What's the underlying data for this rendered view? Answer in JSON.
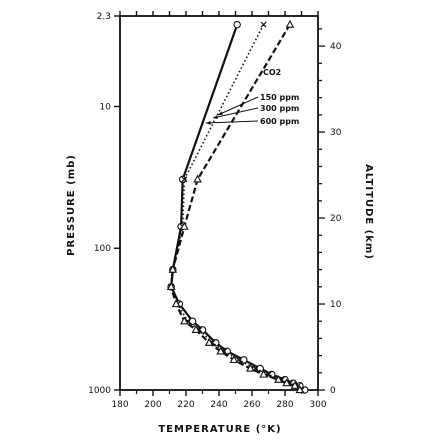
{
  "chart_data": {
    "type": "line",
    "title": "",
    "xlabel": "TEMPERATURE (°K)",
    "ylabel_left": "PRESSURE (mb)",
    "ylabel_right": "ALTITUDE (km)",
    "x_ticks": [
      "180",
      "200",
      "220",
      "240",
      "260",
      "280",
      "300"
    ],
    "xlim": [
      180,
      300
    ],
    "left_axis": {
      "scale": "log",
      "ticks": [
        "2.3",
        "10",
        "100",
        "1000"
      ],
      "ylim": [
        1000,
        2.3
      ]
    },
    "right_axis": {
      "ticks": [
        "0",
        "10",
        "20",
        "30",
        "40"
      ],
      "ylim": [
        0,
        43.5
      ]
    },
    "legend": {
      "title": "CO2",
      "position": "upper-right",
      "entries": [
        "150 ppm",
        "300 ppm",
        "600 ppm"
      ]
    },
    "series": [
      {
        "name": "150 ppm",
        "marker": "circle",
        "line": "solid",
        "points": [
          [
            251,
            42.5
          ],
          [
            218,
            24.5
          ],
          [
            217,
            19
          ],
          [
            212,
            14
          ],
          [
            211,
            12
          ],
          [
            216,
            10
          ],
          [
            224,
            8
          ],
          [
            230,
            7
          ],
          [
            238,
            5.5
          ],
          [
            245,
            4.5
          ],
          [
            255,
            3.5
          ],
          [
            265,
            2.5
          ],
          [
            272,
            1.8
          ],
          [
            280,
            1.2
          ],
          [
            285,
            0.8
          ],
          [
            289,
            0.5
          ],
          [
            292,
            0
          ]
        ]
      },
      {
        "name": "300 ppm",
        "marker": "cross",
        "line": "dotted",
        "points": [
          [
            267,
            42.5
          ],
          [
            219,
            24.5
          ],
          [
            218,
            19
          ],
          [
            212,
            14
          ],
          [
            211,
            12
          ],
          [
            215,
            10
          ],
          [
            221,
            8
          ],
          [
            228,
            7
          ],
          [
            236,
            5.5
          ],
          [
            243,
            4.5
          ],
          [
            252,
            3.5
          ],
          [
            262,
            2.5
          ],
          [
            270,
            1.8
          ],
          [
            278,
            1.2
          ],
          [
            283,
            0.8
          ],
          [
            288,
            0.5
          ],
          [
            290,
            0
          ]
        ]
      },
      {
        "name": "600 ppm",
        "marker": "triangle",
        "line": "dashed",
        "points": [
          [
            283,
            42.5
          ],
          [
            227,
            24.5
          ],
          [
            219,
            19
          ],
          [
            212,
            14
          ],
          [
            211,
            12
          ],
          [
            214,
            10
          ],
          [
            219,
            8
          ],
          [
            226,
            7
          ],
          [
            234,
            5.5
          ],
          [
            241,
            4.5
          ],
          [
            249,
            3.5
          ],
          [
            259,
            2.5
          ],
          [
            267,
            1.8
          ],
          [
            276,
            1.2
          ],
          [
            281,
            0.8
          ],
          [
            286,
            0.5
          ],
          [
            289,
            0
          ]
        ]
      }
    ]
  }
}
